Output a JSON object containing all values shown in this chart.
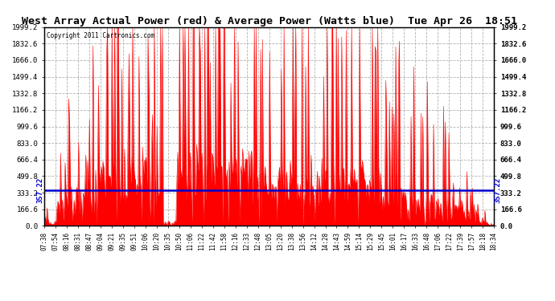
{
  "title": "West Array Actual Power (red) & Average Power (Watts blue)  Tue Apr 26  18:51",
  "copyright": "Copyright 2011 Cartronics.com",
  "avg_power": 357.22,
  "y_max": 1999.2,
  "y_min": 0.0,
  "y_ticks": [
    0.0,
    166.6,
    333.2,
    499.8,
    666.4,
    833.0,
    999.6,
    1166.2,
    1332.8,
    1499.4,
    1666.0,
    1832.6,
    1999.2
  ],
  "background_color": "#ffffff",
  "plot_bg_color": "#ffffff",
  "bar_color": "#ff0000",
  "avg_line_color": "#0000cc",
  "grid_color": "#aaaaaa",
  "title_fontsize": 9.5,
  "n_points": 500,
  "x_labels": [
    "07:38",
    "07:54",
    "08:16",
    "08:31",
    "08:47",
    "09:04",
    "09:21",
    "09:35",
    "09:51",
    "10:06",
    "10:20",
    "10:35",
    "10:50",
    "11:06",
    "11:22",
    "11:42",
    "11:58",
    "12:16",
    "12:33",
    "12:48",
    "13:05",
    "13:20",
    "13:38",
    "13:56",
    "14:12",
    "14:28",
    "14:43",
    "14:59",
    "15:14",
    "15:29",
    "15:45",
    "16:01",
    "16:17",
    "16:33",
    "16:48",
    "17:06",
    "17:22",
    "17:39",
    "17:57",
    "18:18",
    "18:34"
  ]
}
